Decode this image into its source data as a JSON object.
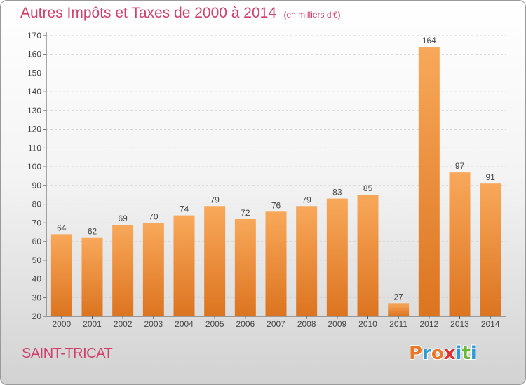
{
  "header": {
    "title": "Autres Impôts et Taxes de 2000 à 2014",
    "unit_note": "(en milliers d'€)"
  },
  "footer": {
    "commune": "SAINT-TRICAT",
    "logo_text": "Proxiti",
    "logo_colors": [
      "#e8782a",
      "#2f9ad8",
      "#e8782a",
      "#e03030",
      "#2f9ad8",
      "#6aba3a",
      "#2f9ad8"
    ]
  },
  "colors": {
    "title": "#d0406a",
    "bar_top": "#f8a85a",
    "bar_bottom": "#dc7420",
    "axis": "#555555",
    "grid": "#cfcfcf"
  },
  "chart_data": {
    "type": "bar",
    "title": "Autres Impôts et Taxes de 2000 à 2014",
    "subtitle": "(en milliers d'€)",
    "xlabel": "",
    "ylabel": "",
    "categories": [
      "2000",
      "2001",
      "2002",
      "2003",
      "2004",
      "2005",
      "2006",
      "2007",
      "2008",
      "2009",
      "2010",
      "2011",
      "2012",
      "2013",
      "2014"
    ],
    "values": [
      64,
      62,
      69,
      70,
      74,
      79,
      72,
      76,
      79,
      83,
      85,
      27,
      164,
      97,
      91
    ],
    "ylim": [
      20,
      170
    ],
    "yticks": [
      20,
      30,
      40,
      50,
      60,
      70,
      80,
      90,
      100,
      110,
      120,
      130,
      140,
      150,
      160,
      170
    ],
    "grid": "horizontal dashed",
    "legend": "none",
    "data_labels": true
  }
}
